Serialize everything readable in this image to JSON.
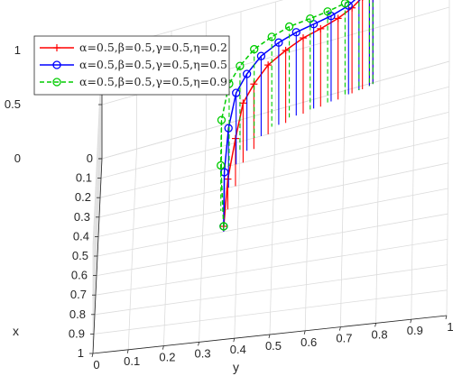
{
  "chart_data": {
    "type": "line3d",
    "title": "",
    "xlabel": "x",
    "ylabel": "y",
    "zlabel": "",
    "x_ticks": [
      "0",
      "0.1",
      "0.2",
      "0.3",
      "0.4",
      "0.5",
      "0.6",
      "0.7",
      "0.8",
      "0.9",
      "1"
    ],
    "y_ticks": [
      "0",
      "0.1",
      "0.2",
      "0.3",
      "0.4",
      "0.5",
      "0.6",
      "0.7",
      "0.8",
      "0.9",
      "1"
    ],
    "z_ticks": [
      "0",
      "0.5",
      "1"
    ],
    "xlim": [
      0,
      1
    ],
    "ylim": [
      0,
      1
    ],
    "zlim": [
      0,
      1
    ],
    "grid": true,
    "legend_position": "top-left",
    "series": [
      {
        "name": "α=0.5,β=0.5,γ=0.5,η=0.2",
        "color": "#ff0000",
        "line_style": "solid",
        "marker": "plus",
        "points": [
          [
            0.5,
            0.36,
            0.05
          ],
          [
            0.4,
            0.37,
            0.28
          ],
          [
            0.3,
            0.39,
            0.44
          ],
          [
            0.2,
            0.41,
            0.55
          ],
          [
            0.15,
            0.44,
            0.6
          ],
          [
            0.1,
            0.48,
            0.64
          ],
          [
            0.07,
            0.53,
            0.67
          ],
          [
            0.05,
            0.58,
            0.7
          ],
          [
            0.04,
            0.63,
            0.72
          ],
          [
            0.03,
            0.68,
            0.75
          ],
          [
            0.02,
            0.72,
            0.79
          ],
          [
            0.015,
            0.75,
            0.85
          ],
          [
            0.01,
            0.77,
            0.93
          ],
          [
            0.005,
            0.78,
            1.02
          ]
        ]
      },
      {
        "name": "α=0.5,β=0.5,γ=0.5,η=0.5",
        "color": "#0000ff",
        "line_style": "solid",
        "marker": "circle",
        "points": [
          [
            0.5,
            0.36,
            0.05
          ],
          [
            0.4,
            0.36,
            0.35
          ],
          [
            0.3,
            0.37,
            0.55
          ],
          [
            0.2,
            0.39,
            0.66
          ],
          [
            0.15,
            0.42,
            0.71
          ],
          [
            0.1,
            0.46,
            0.74
          ],
          [
            0.07,
            0.51,
            0.76
          ],
          [
            0.05,
            0.56,
            0.77
          ],
          [
            0.04,
            0.61,
            0.78
          ],
          [
            0.03,
            0.66,
            0.79
          ],
          [
            0.02,
            0.71,
            0.82
          ],
          [
            0.015,
            0.74,
            0.87
          ],
          [
            0.01,
            0.77,
            0.94
          ],
          [
            0.005,
            0.78,
            1.02
          ]
        ]
      },
      {
        "name": "α=0.5,β=0.5,γ=0.5,η=0.9",
        "color": "#00cc00",
        "line_style": "dashed",
        "marker": "circle",
        "points": [
          [
            0.5,
            0.36,
            0.05
          ],
          [
            0.4,
            0.35,
            0.42
          ],
          [
            0.3,
            0.35,
            0.64
          ],
          [
            0.2,
            0.37,
            0.76
          ],
          [
            0.15,
            0.4,
            0.8
          ],
          [
            0.1,
            0.44,
            0.82
          ],
          [
            0.07,
            0.49,
            0.83
          ],
          [
            0.05,
            0.54,
            0.84
          ],
          [
            0.04,
            0.6,
            0.84
          ],
          [
            0.03,
            0.65,
            0.84
          ],
          [
            0.02,
            0.7,
            0.85
          ],
          [
            0.015,
            0.74,
            0.88
          ],
          [
            0.01,
            0.77,
            0.94
          ],
          [
            0.005,
            0.78,
            1.02
          ]
        ]
      }
    ]
  }
}
